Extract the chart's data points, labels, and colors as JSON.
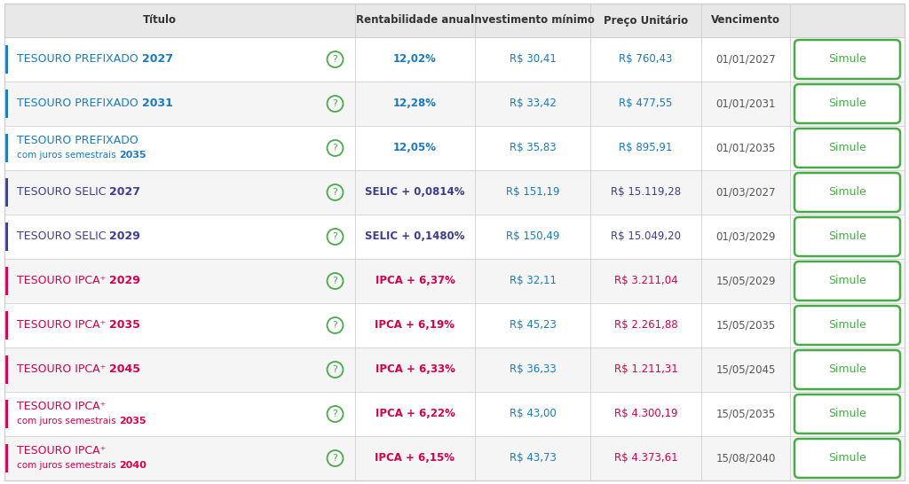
{
  "rows": [
    {
      "title_main": "TESOURO PREFIXADO ",
      "title_bold": "2027",
      "title_sub": "",
      "rentabilidade": "12,02%",
      "investimento": "R$ 30,41",
      "preco": "R$ 760,43",
      "vencimento": "01/01/2027",
      "bar_color": "#1a7abf",
      "text_color": "#1a7abf",
      "rent_color": "#1a7abf"
    },
    {
      "title_main": "TESOURO PREFIXADO ",
      "title_bold": "2031",
      "title_sub": "",
      "rentabilidade": "12,28%",
      "investimento": "R$ 33,42",
      "preco": "R$ 477,55",
      "vencimento": "01/01/2031",
      "bar_color": "#1a7abf",
      "text_color": "#1a7abf",
      "rent_color": "#1a7abf"
    },
    {
      "title_main": "TESOURO PREFIXADO",
      "title_bold": "2035",
      "title_sub": "com juros semestrais ",
      "rentabilidade": "12,05%",
      "investimento": "R$ 35,83",
      "preco": "R$ 895,91",
      "vencimento": "01/01/2035",
      "bar_color": "#1a7abf",
      "text_color": "#1a7abf",
      "rent_color": "#1a7abf"
    },
    {
      "title_main": "TESOURO SELIC ",
      "title_bold": "2027",
      "title_sub": "",
      "rentabilidade": "SELIC + 0,0814%",
      "investimento": "R$ 151,19",
      "preco": "R$ 15.119,28",
      "vencimento": "01/03/2027",
      "bar_color": "#3d3d8f",
      "text_color": "#3d3d8f",
      "rent_color": "#3d3d8f"
    },
    {
      "title_main": "TESOURO SELIC ",
      "title_bold": "2029",
      "title_sub": "",
      "rentabilidade": "SELIC + 0,1480%",
      "investimento": "R$ 150,49",
      "preco": "R$ 15.049,20",
      "vencimento": "01/03/2029",
      "bar_color": "#3d3d8f",
      "text_color": "#3d3d8f",
      "rent_color": "#3d3d8f"
    },
    {
      "title_main": "TESOURO IPCA⁺ ",
      "title_bold": "2029",
      "title_sub": "",
      "rentabilidade": "IPCA + 6,37%",
      "investimento": "R$ 32,11",
      "preco": "R$ 3.211,04",
      "vencimento": "15/05/2029",
      "bar_color": "#d4004c",
      "text_color": "#d4004c",
      "rent_color": "#d4004c"
    },
    {
      "title_main": "TESOURO IPCA⁺ ",
      "title_bold": "2035",
      "title_sub": "",
      "rentabilidade": "IPCA + 6,19%",
      "investimento": "R$ 45,23",
      "preco": "R$ 2.261,88",
      "vencimento": "15/05/2035",
      "bar_color": "#d4004c",
      "text_color": "#d4004c",
      "rent_color": "#d4004c"
    },
    {
      "title_main": "TESOURO IPCA⁺ ",
      "title_bold": "2045",
      "title_sub": "",
      "rentabilidade": "IPCA + 6,33%",
      "investimento": "R$ 36,33",
      "preco": "R$ 1.211,31",
      "vencimento": "15/05/2045",
      "bar_color": "#d4004c",
      "text_color": "#d4004c",
      "rent_color": "#d4004c"
    },
    {
      "title_main": "TESOURO IPCA⁺",
      "title_bold": "2035",
      "title_sub": "com juros semestrais ",
      "rentabilidade": "IPCA + 6,22%",
      "investimento": "R$ 43,00",
      "preco": "R$ 4.300,19",
      "vencimento": "15/05/2035",
      "bar_color": "#d4004c",
      "text_color": "#d4004c",
      "rent_color": "#d4004c"
    },
    {
      "title_main": "TESOURO IPCA⁺",
      "title_bold": "2040",
      "title_sub": "com juros semestrais ",
      "rentabilidade": "IPCA + 6,15%",
      "investimento": "R$ 43,73",
      "preco": "R$ 4.373,61",
      "vencimento": "15/08/2040",
      "bar_color": "#d4004c",
      "text_color": "#d4004c",
      "rent_color": "#d4004c"
    }
  ],
  "bg_color": "#FFFFFF",
  "header_bg": "#e8e8e8",
  "border_color": "#d0d0d0",
  "header_text_color": "#333333",
  "simule_border_color": "#4aaa4a",
  "simule_text_color": "#4aaa4a",
  "question_circle_color": "#4aaa4a",
  "vencimento_color": "#555555",
  "investimento_color": "#1a7abf",
  "title_font_size": 9.0,
  "sub_font_size": 7.5,
  "data_font_size": 8.5
}
